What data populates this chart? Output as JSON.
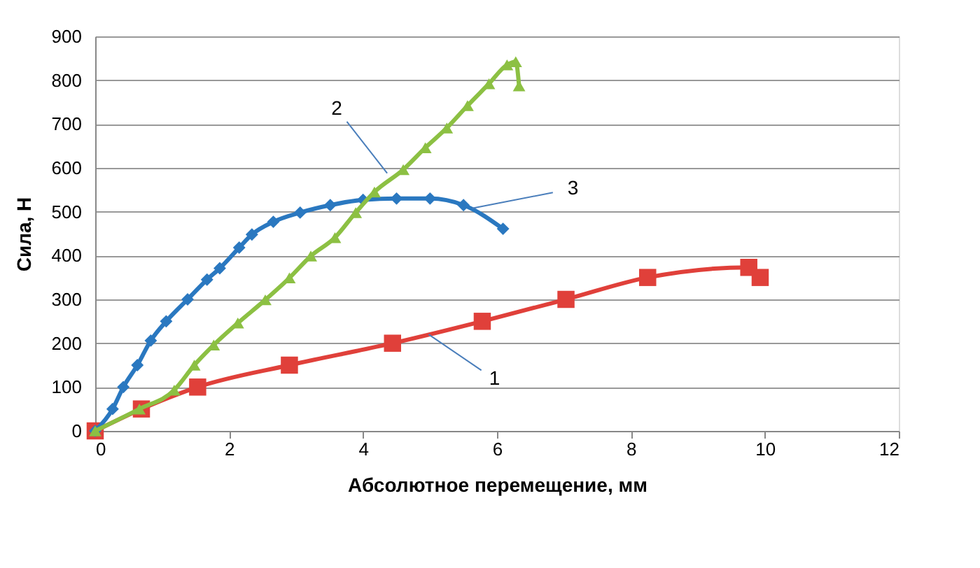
{
  "chart_data": {
    "type": "line",
    "xlabel": "Абсолютное перемещение, мм",
    "ylabel": "Сила, Н",
    "xlim": [
      0,
      12
    ],
    "xticks": [
      0,
      2,
      4,
      6,
      8,
      10,
      12
    ],
    "ylim": [
      0,
      900
    ],
    "yticks": [
      0,
      100,
      200,
      300,
      400,
      500,
      600,
      700,
      800,
      900
    ],
    "grid": "y",
    "series": [
      {
        "color": "#e0403a",
        "marker": "square",
        "x": [
          0,
          0.69,
          1.53,
          2.9,
          4.44,
          5.78,
          7.03,
          8.25,
          9.76,
          9.93
        ],
        "values": [
          0,
          50,
          100,
          150,
          200,
          250,
          300,
          350,
          373,
          350
        ]
      },
      {
        "color": "#2a78c0",
        "marker": "diamond",
        "x": [
          0,
          0.26,
          0.42,
          0.63,
          0.83,
          1.06,
          1.38,
          1.67,
          1.86,
          2.15,
          2.34,
          2.66,
          3.06,
          3.51,
          4.0,
          4.5,
          5.0,
          5.5,
          6.09
        ],
        "values": [
          0,
          50,
          100,
          150,
          206,
          250,
          300,
          345,
          371,
          418,
          448,
          477,
          498,
          515,
          527,
          530,
          530,
          515,
          461
        ]
      },
      {
        "color": "#8cc043",
        "marker": "triangle",
        "x": [
          0,
          0.66,
          1.18,
          1.48,
          1.77,
          2.13,
          2.54,
          2.9,
          3.22,
          3.58,
          3.89,
          4.17,
          4.6,
          4.93,
          5.25,
          5.56,
          5.88,
          6.15,
          6.28,
          6.33
        ],
        "values": [
          0,
          50,
          93,
          150,
          196,
          246,
          299,
          349,
          399,
          441,
          498,
          545,
          596,
          646,
          691,
          742,
          792,
          835,
          842,
          787
        ]
      }
    ],
    "annotations": [
      {
        "text": "1",
        "x": 4.98,
        "y": 220
      },
      {
        "text": "2",
        "x": 4.36,
        "y": 588
      },
      {
        "text": "3",
        "x": 5.63,
        "y": 508
      }
    ]
  }
}
